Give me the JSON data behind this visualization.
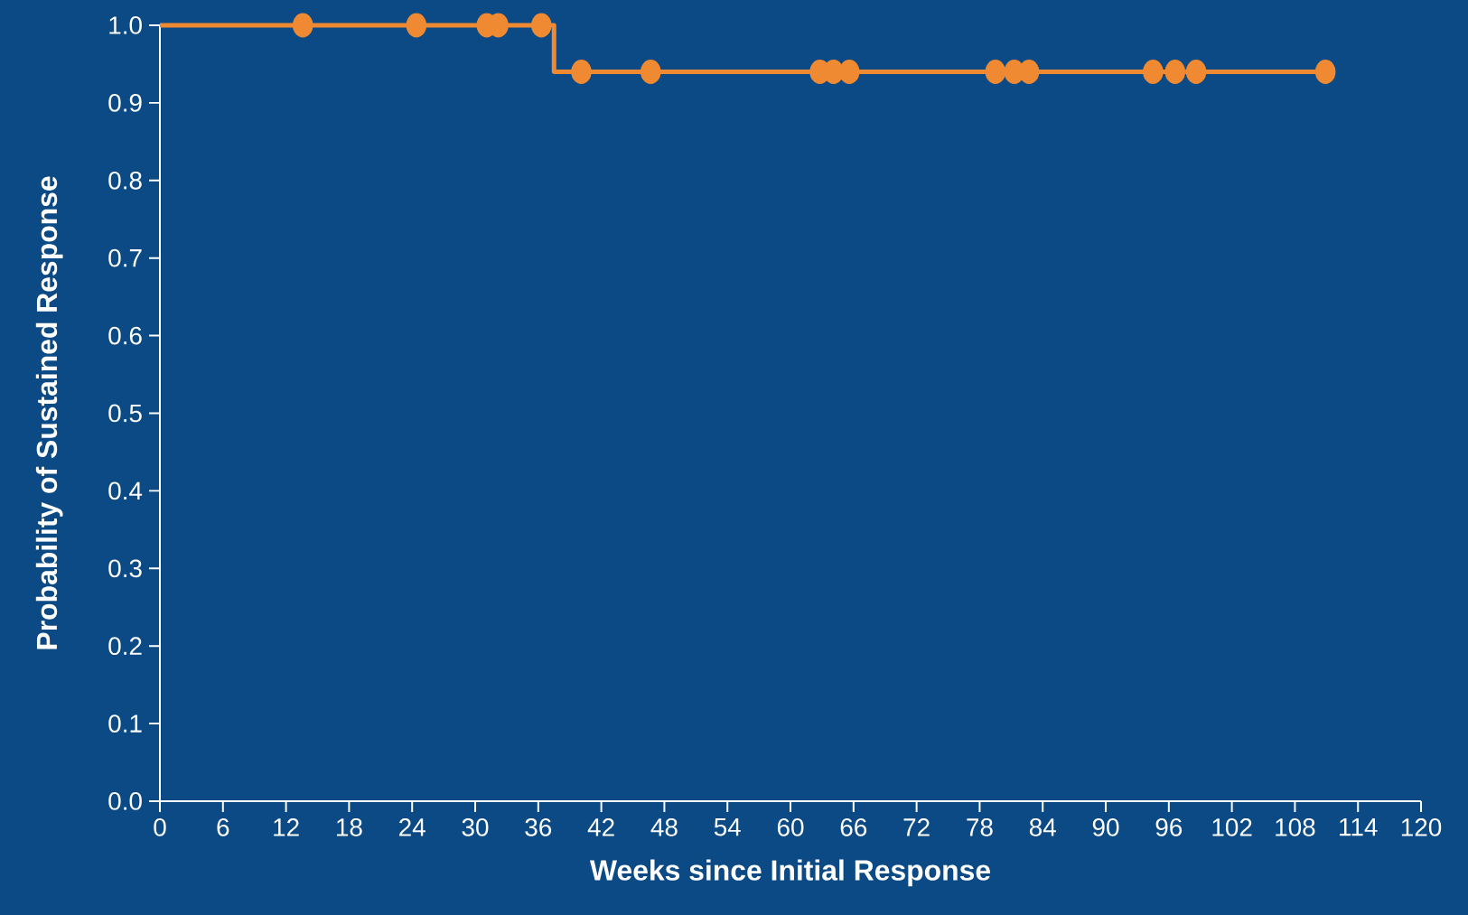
{
  "chart_data": {
    "type": "step",
    "xlabel": "Weeks since Initial Response",
    "ylabel": "Probability of Sustained Response",
    "xlim": [
      0,
      120
    ],
    "xticks": [
      0,
      6,
      12,
      18,
      24,
      30,
      36,
      42,
      48,
      54,
      60,
      66,
      72,
      78,
      84,
      90,
      96,
      102,
      108,
      114,
      120
    ],
    "ylim": [
      0,
      1
    ],
    "yticks": [
      {
        "value": 0,
        "label": "0.0"
      },
      {
        "value": 0.1,
        "label": "0.1"
      },
      {
        "value": 0.2,
        "label": "0.2"
      },
      {
        "value": 0.3,
        "label": "0.3"
      },
      {
        "value": 0.4,
        "label": "0.4"
      },
      {
        "value": 0.5,
        "label": "0.5"
      },
      {
        "value": 0.6,
        "label": "0.6"
      },
      {
        "value": 0.7,
        "label": "0.7"
      },
      {
        "value": 0.8,
        "label": "0.8"
      },
      {
        "value": 0.9,
        "label": "0.9"
      },
      {
        "value": 1,
        "label": "1.0"
      }
    ],
    "grid": false,
    "series": [
      {
        "color": "#f08a32",
        "marker": "none",
        "x": [
          0,
          37.5,
          110.9
        ],
        "values": [
          1,
          0.94,
          0.94
        ]
      },
      {
        "type": "scatter",
        "color": "#f08a32",
        "marker": "circle",
        "x": [
          13.6,
          24.4,
          31.1,
          32.2,
          36.3,
          40.1,
          46.7,
          62.8,
          64.1,
          65.6,
          79.5,
          81.3,
          82.7,
          94.5,
          96.6,
          98.6,
          110.9
        ],
        "values": [
          1,
          1,
          1,
          1,
          1,
          0.94,
          0.94,
          0.94,
          0.94,
          0.94,
          0.94,
          0.94,
          0.94,
          0.94,
          0.94,
          0.94,
          0.94
        ]
      }
    ]
  }
}
